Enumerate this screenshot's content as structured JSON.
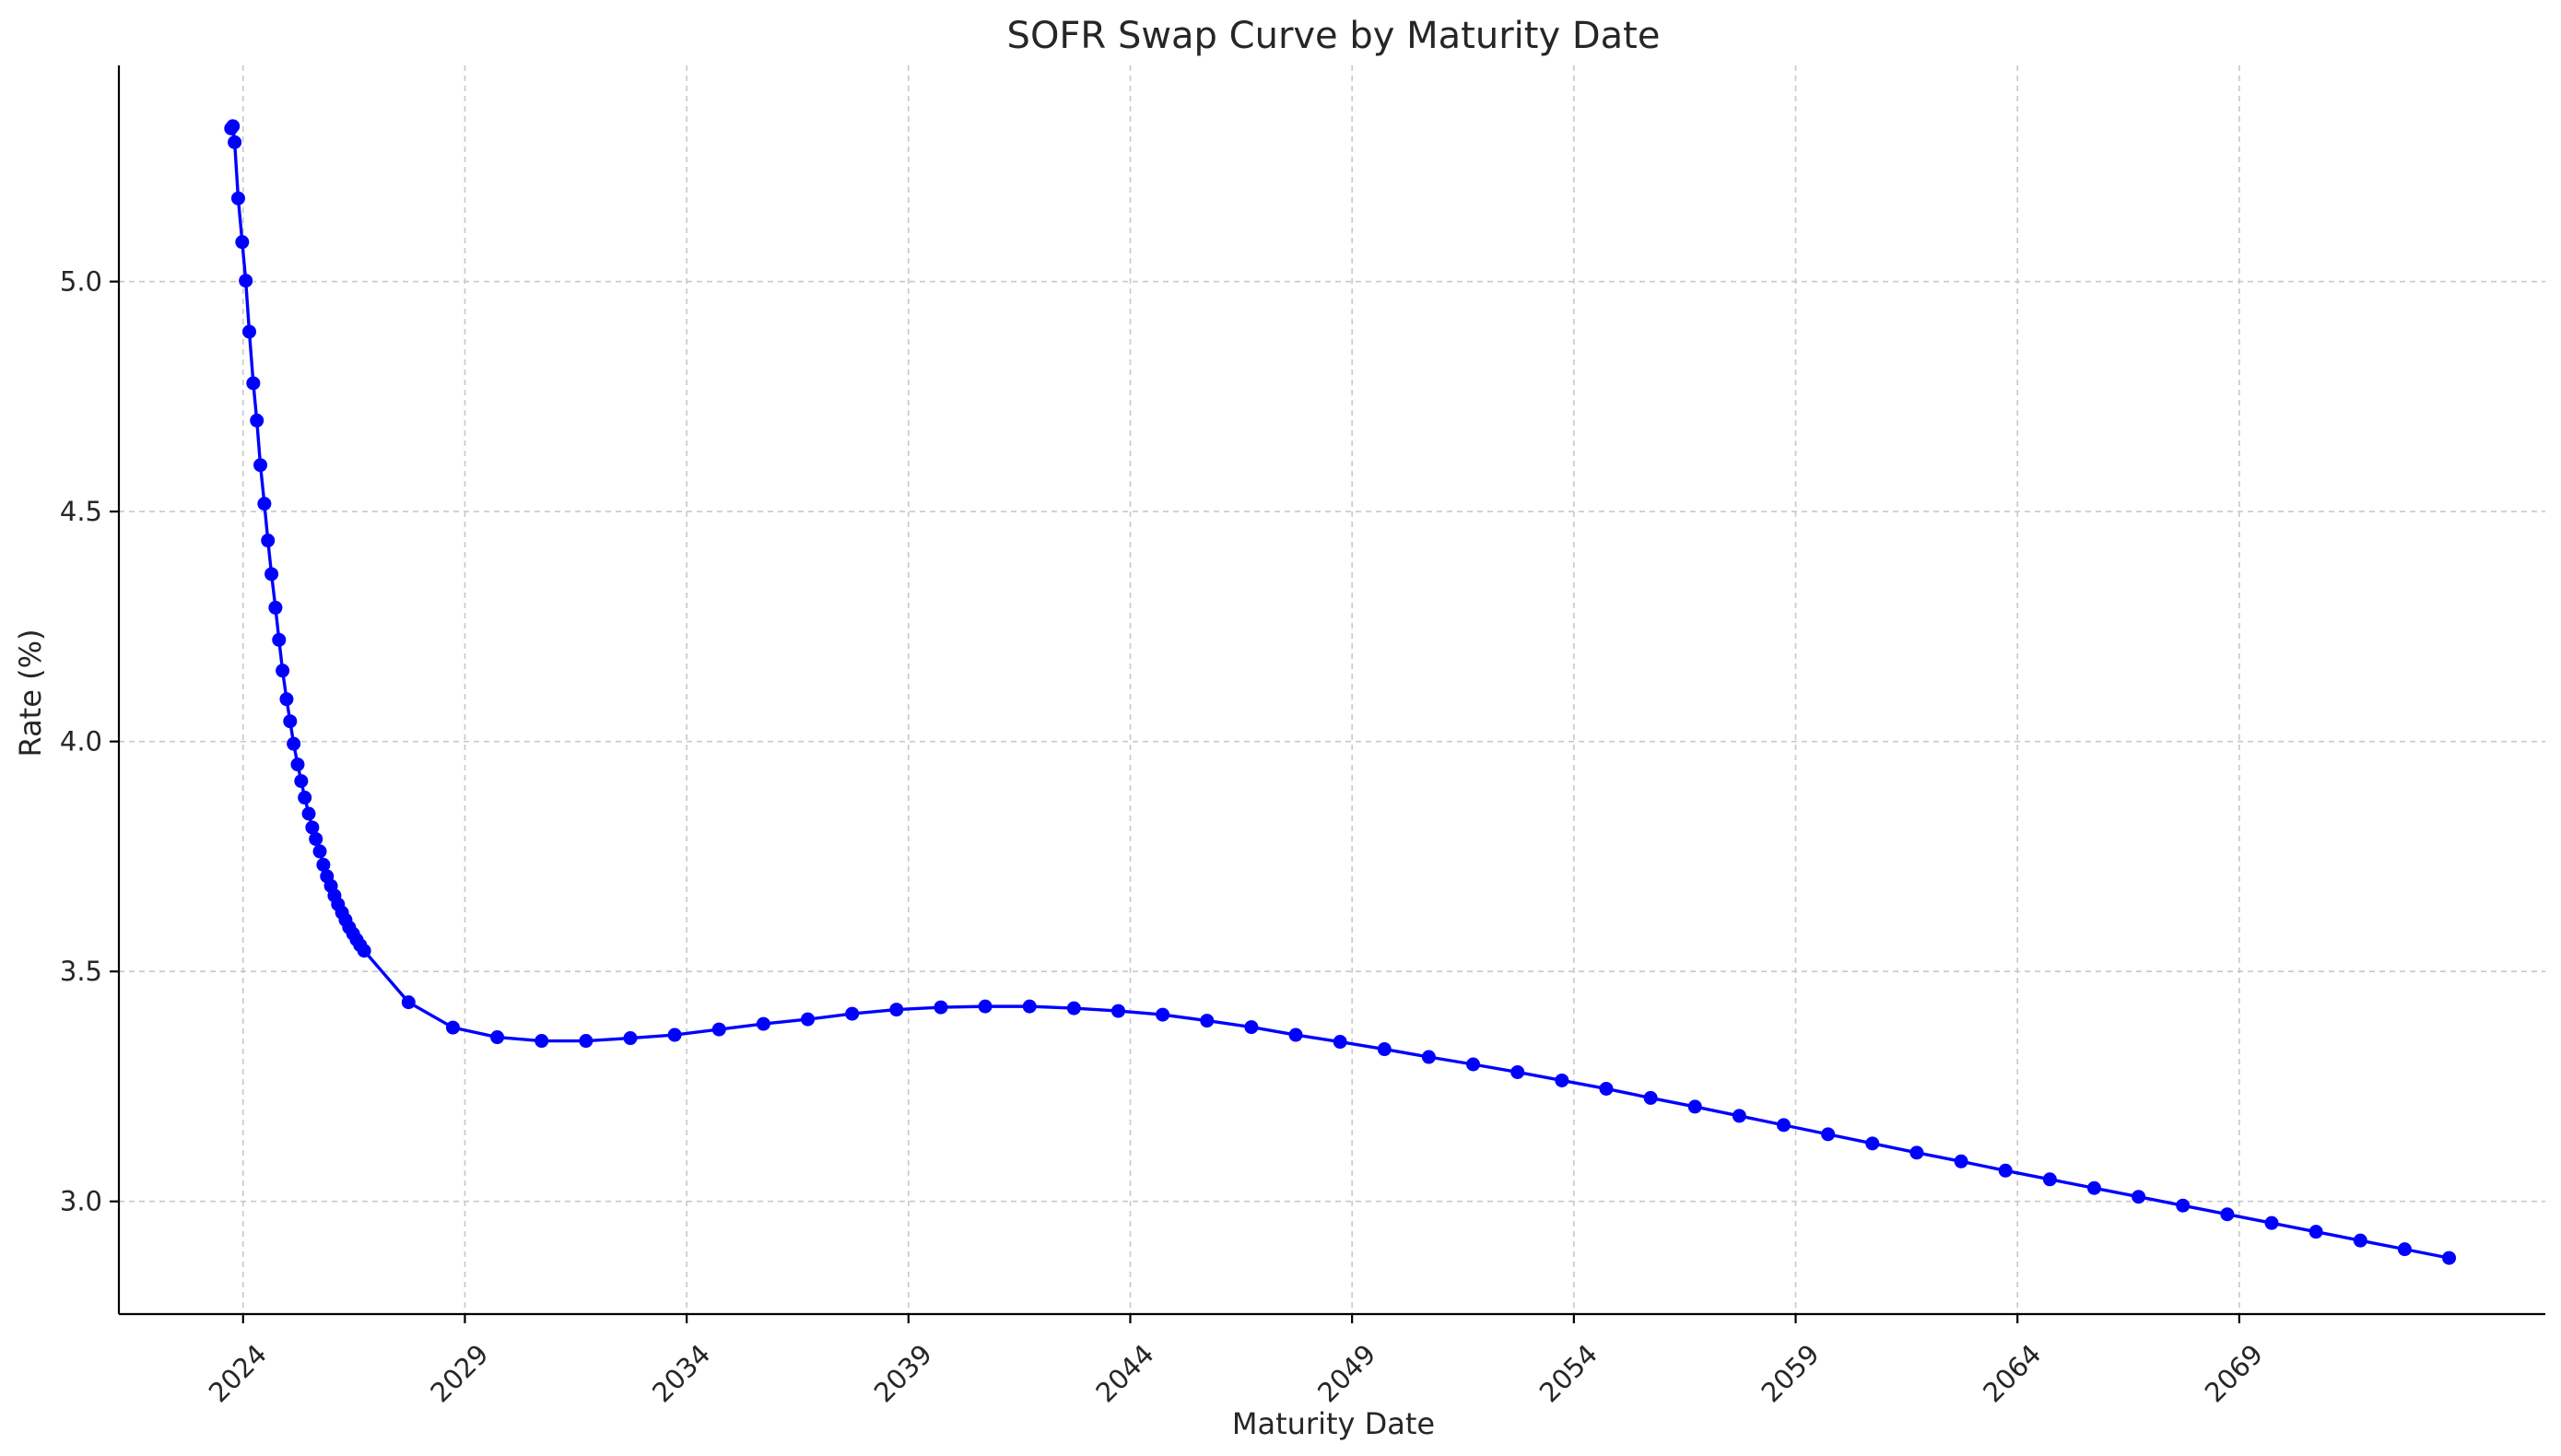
{
  "chart_data": {
    "type": "line",
    "title": "SOFR Swap Curve by Maturity Date",
    "xlabel": "Maturity Date",
    "ylabel": "Rate (%)",
    "x_type": "date",
    "xlim": [
      2021.2,
      2075.9
    ],
    "ylim": [
      2.755,
      5.47
    ],
    "x_ticks": [
      2024,
      2029,
      2034,
      2039,
      2044,
      2049,
      2054,
      2059,
      2064,
      2069
    ],
    "y_ticks": [
      3.0,
      3.5,
      4.0,
      4.5,
      5.0
    ],
    "y_tick_labels": [
      "3.0",
      "3.5",
      "4.0",
      "4.5",
      "5.0"
    ],
    "grid": true,
    "legend": "none",
    "series": [
      {
        "color": "#0000ff",
        "marker": "circle",
        "x": [
          2023.73,
          2023.77,
          2023.81,
          2023.89,
          2023.98,
          2024.06,
          2024.14,
          2024.23,
          2024.31,
          2024.39,
          2024.48,
          2024.56,
          2024.64,
          2024.73,
          2024.81,
          2024.89,
          2024.98,
          2025.06,
          2025.14,
          2025.23,
          2025.31,
          2025.39,
          2025.48,
          2025.56,
          2025.64,
          2025.73,
          2025.81,
          2025.89,
          2025.98,
          2026.06,
          2026.14,
          2026.23,
          2026.31,
          2026.39,
          2026.48,
          2026.56,
          2026.64,
          2026.73,
          2027.73,
          2028.73,
          2029.73,
          2030.73,
          2031.73,
          2032.73,
          2033.73,
          2034.73,
          2035.73,
          2036.73,
          2037.73,
          2038.73,
          2039.73,
          2040.73,
          2041.73,
          2042.73,
          2043.73,
          2044.73,
          2045.73,
          2046.73,
          2047.73,
          2048.73,
          2049.73,
          2050.73,
          2051.73,
          2052.73,
          2053.73,
          2054.73,
          2055.73,
          2056.73,
          2057.73,
          2058.73,
          2059.73,
          2060.73,
          2061.73,
          2062.73,
          2063.73,
          2064.73,
          2065.73,
          2066.73,
          2067.73,
          2068.73,
          2069.73,
          2070.73,
          2071.73,
          2072.73,
          2073.73
        ],
        "y": [
          5.333,
          5.338,
          5.303,
          5.181,
          5.086,
          5.002,
          4.891,
          4.779,
          4.698,
          4.601,
          4.517,
          4.437,
          4.364,
          4.291,
          4.221,
          4.154,
          4.092,
          4.044,
          3.995,
          3.95,
          3.914,
          3.878,
          3.843,
          3.813,
          3.788,
          3.761,
          3.732,
          3.707,
          3.686,
          3.665,
          3.646,
          3.628,
          3.612,
          3.596,
          3.582,
          3.569,
          3.557,
          3.545,
          3.433,
          3.378,
          3.357,
          3.349,
          3.349,
          3.355,
          3.362,
          3.374,
          3.386,
          3.396,
          3.408,
          3.417,
          3.422,
          3.424,
          3.424,
          3.42,
          3.414,
          3.406,
          3.393,
          3.379,
          3.362,
          3.347,
          3.331,
          3.314,
          3.298,
          3.281,
          3.263,
          3.245,
          3.225,
          3.206,
          3.186,
          3.166,
          3.146,
          3.126,
          3.106,
          3.087,
          3.067,
          3.048,
          3.029,
          3.01,
          2.991,
          2.972,
          2.953,
          2.934,
          2.915,
          2.896,
          2.877
        ]
      }
    ]
  }
}
